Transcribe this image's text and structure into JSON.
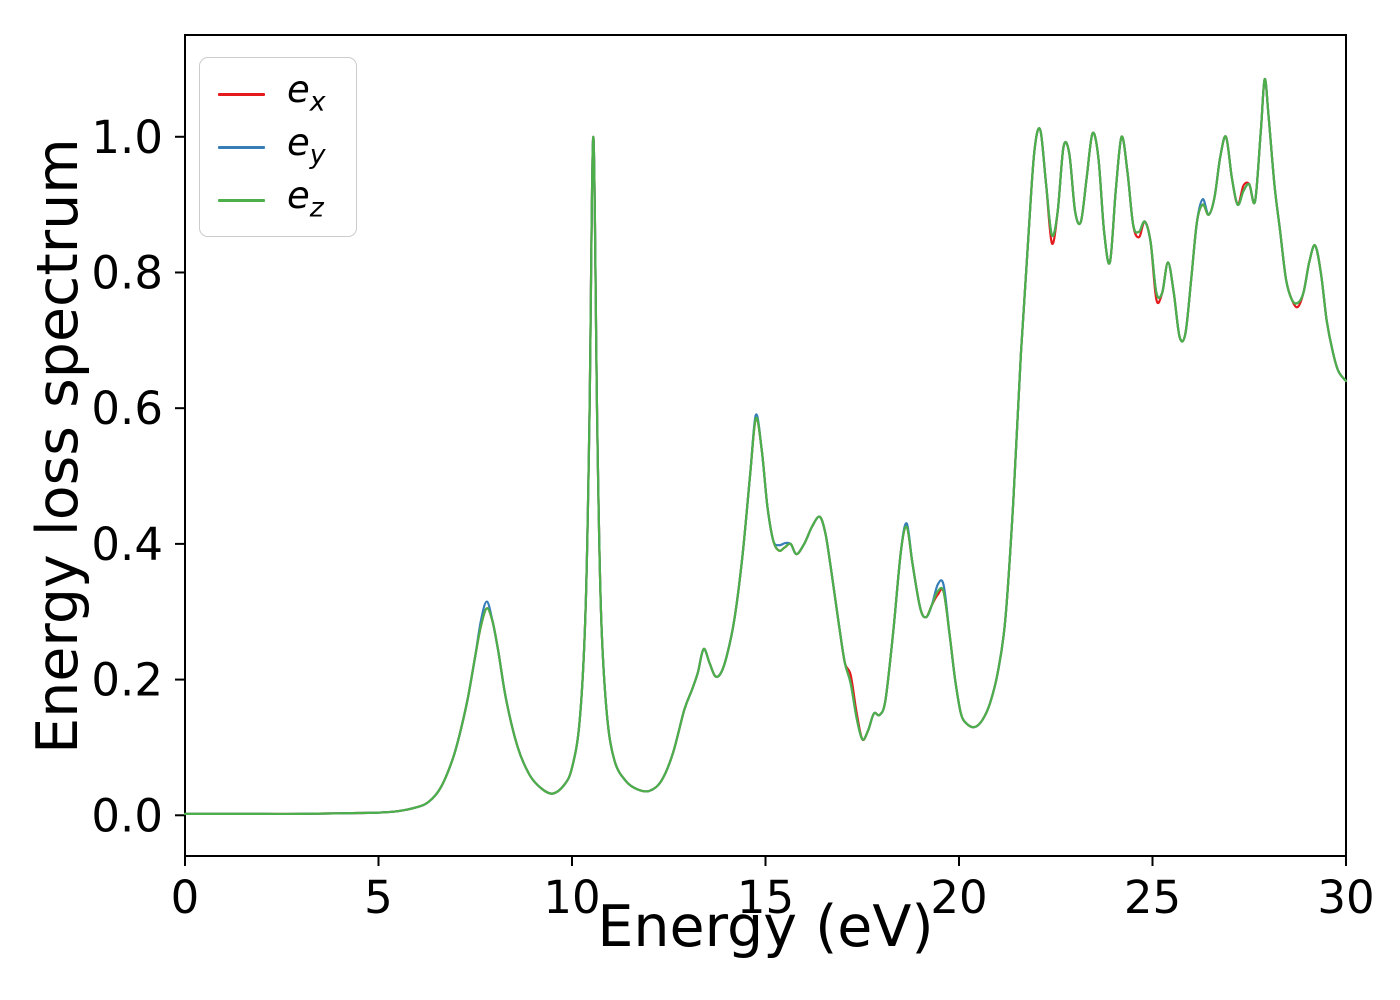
{
  "figure": {
    "background": "#ffffff",
    "spine_color": "#000000",
    "xlabel": "Energy (eV)",
    "ylabel": "Energy loss spectrum",
    "xticks": {
      "values": [
        0,
        5,
        10,
        15,
        20,
        25,
        30
      ],
      "labels": [
        "0",
        "5",
        "10",
        "15",
        "20",
        "25",
        "30"
      ]
    },
    "yticks": {
      "values": [
        0,
        0.2,
        0.4,
        0.6,
        0.8,
        1.0
      ],
      "labels": [
        "0.0",
        "0.2",
        "0.4",
        "0.6",
        "0.8",
        "1.0"
      ]
    }
  },
  "chart_data": {
    "type": "line",
    "title": "",
    "xlabel": "Energy (eV)",
    "ylabel": "Energy loss spectrum",
    "xlim": [
      0,
      30
    ],
    "ylim": [
      -0.06,
      1.15
    ],
    "grid": false,
    "legend_position": "upper left",
    "x": [
      0,
      1,
      2,
      3,
      4,
      5,
      5.5,
      6,
      6.3,
      6.6,
      6.9,
      7.1,
      7.3,
      7.5,
      7.65,
      7.8,
      7.95,
      8.1,
      8.3,
      8.6,
      8.9,
      9.2,
      9.5,
      9.8,
      10.0,
      10.2,
      10.35,
      10.45,
      10.55,
      10.65,
      10.75,
      10.9,
      11.1,
      11.4,
      11.7,
      12.0,
      12.3,
      12.6,
      12.9,
      13.1,
      13.25,
      13.4,
      13.55,
      13.7,
      13.85,
      14.0,
      14.2,
      14.4,
      14.6,
      14.75,
      14.9,
      15.05,
      15.2,
      15.35,
      15.5,
      15.65,
      15.8,
      16.0,
      16.2,
      16.4,
      16.55,
      16.7,
      16.9,
      17.05,
      17.2,
      17.35,
      17.5,
      17.65,
      17.8,
      17.95,
      18.1,
      18.3,
      18.5,
      18.65,
      18.8,
      19.0,
      19.15,
      19.3,
      19.45,
      19.6,
      19.75,
      19.9,
      20.05,
      20.2,
      20.4,
      20.6,
      20.8,
      21.0,
      21.2,
      21.4,
      21.6,
      21.8,
      21.95,
      22.1,
      22.25,
      22.4,
      22.55,
      22.7,
      22.85,
      23.0,
      23.15,
      23.3,
      23.45,
      23.6,
      23.75,
      23.9,
      24.05,
      24.2,
      24.35,
      24.5,
      24.65,
      24.8,
      24.95,
      25.1,
      25.25,
      25.4,
      25.55,
      25.7,
      25.85,
      26.0,
      26.15,
      26.3,
      26.45,
      26.6,
      26.75,
      26.9,
      27.05,
      27.2,
      27.35,
      27.5,
      27.65,
      27.8,
      27.9,
      28.0,
      28.15,
      28.3,
      28.45,
      28.6,
      28.75,
      28.9,
      29.05,
      29.2,
      29.35,
      29.5,
      29.65,
      29.8,
      30.0
    ],
    "series": [
      {
        "name": "e_x",
        "label_base": "e",
        "label_sub": "x",
        "color": "#e41a1c",
        "values": [
          0.002,
          0.002,
          0.002,
          0.002,
          0.003,
          0.004,
          0.006,
          0.012,
          0.02,
          0.04,
          0.08,
          0.12,
          0.17,
          0.235,
          0.28,
          0.305,
          0.285,
          0.24,
          0.17,
          0.1,
          0.06,
          0.04,
          0.032,
          0.045,
          0.07,
          0.14,
          0.3,
          0.58,
          1.0,
          0.58,
          0.3,
          0.15,
          0.08,
          0.05,
          0.038,
          0.036,
          0.05,
          0.09,
          0.155,
          0.185,
          0.21,
          0.245,
          0.225,
          0.205,
          0.21,
          0.235,
          0.29,
          0.38,
          0.5,
          0.585,
          0.54,
          0.455,
          0.405,
          0.39,
          0.395,
          0.4,
          0.385,
          0.4,
          0.425,
          0.44,
          0.415,
          0.36,
          0.28,
          0.225,
          0.207,
          0.153,
          0.112,
          0.125,
          0.15,
          0.148,
          0.17,
          0.27,
          0.39,
          0.425,
          0.37,
          0.305,
          0.292,
          0.31,
          0.325,
          0.33,
          0.27,
          0.2,
          0.15,
          0.135,
          0.13,
          0.14,
          0.165,
          0.21,
          0.29,
          0.46,
          0.68,
          0.86,
          0.98,
          1.01,
          0.93,
          0.843,
          0.89,
          0.985,
          0.975,
          0.89,
          0.875,
          0.94,
          1.005,
          0.97,
          0.86,
          0.815,
          0.92,
          1.0,
          0.95,
          0.87,
          0.852,
          0.875,
          0.845,
          0.76,
          0.77,
          0.815,
          0.77,
          0.705,
          0.71,
          0.79,
          0.875,
          0.9,
          0.885,
          0.91,
          0.97,
          1.0,
          0.94,
          0.9,
          0.928,
          0.93,
          0.905,
          1.01,
          1.085,
          1.03,
          0.93,
          0.86,
          0.79,
          0.76,
          0.749,
          0.77,
          0.815,
          0.84,
          0.8,
          0.73,
          0.685,
          0.655,
          0.64
        ]
      },
      {
        "name": "e_y",
        "label_base": "e",
        "label_sub": "y",
        "color": "#377eb8",
        "values": [
          0.002,
          0.002,
          0.002,
          0.002,
          0.003,
          0.004,
          0.006,
          0.012,
          0.02,
          0.04,
          0.08,
          0.12,
          0.17,
          0.235,
          0.288,
          0.315,
          0.285,
          0.24,
          0.17,
          0.1,
          0.06,
          0.04,
          0.032,
          0.045,
          0.07,
          0.14,
          0.3,
          0.58,
          1.0,
          0.58,
          0.3,
          0.15,
          0.08,
          0.05,
          0.038,
          0.036,
          0.05,
          0.09,
          0.155,
          0.185,
          0.21,
          0.245,
          0.225,
          0.205,
          0.21,
          0.235,
          0.29,
          0.38,
          0.5,
          0.59,
          0.54,
          0.455,
          0.405,
          0.398,
          0.401,
          0.4,
          0.385,
          0.4,
          0.425,
          0.44,
          0.415,
          0.36,
          0.28,
          0.225,
          0.195,
          0.145,
          0.112,
          0.125,
          0.15,
          0.148,
          0.17,
          0.27,
          0.39,
          0.43,
          0.37,
          0.305,
          0.292,
          0.31,
          0.34,
          0.34,
          0.27,
          0.2,
          0.15,
          0.135,
          0.13,
          0.14,
          0.165,
          0.21,
          0.29,
          0.46,
          0.68,
          0.86,
          0.98,
          1.01,
          0.93,
          0.855,
          0.89,
          0.985,
          0.975,
          0.89,
          0.875,
          0.94,
          1.005,
          0.97,
          0.86,
          0.815,
          0.92,
          1.0,
          0.95,
          0.87,
          0.86,
          0.875,
          0.845,
          0.77,
          0.77,
          0.815,
          0.77,
          0.705,
          0.71,
          0.79,
          0.875,
          0.908,
          0.885,
          0.91,
          0.97,
          1.0,
          0.94,
          0.9,
          0.92,
          0.93,
          0.905,
          1.01,
          1.085,
          1.03,
          0.93,
          0.86,
          0.79,
          0.76,
          0.755,
          0.77,
          0.815,
          0.84,
          0.8,
          0.73,
          0.685,
          0.655,
          0.64
        ]
      },
      {
        "name": "e_z",
        "label_base": "e",
        "label_sub": "z",
        "color": "#4daf4a",
        "values": [
          0.002,
          0.002,
          0.002,
          0.002,
          0.003,
          0.004,
          0.006,
          0.012,
          0.02,
          0.04,
          0.08,
          0.12,
          0.17,
          0.235,
          0.28,
          0.305,
          0.285,
          0.24,
          0.17,
          0.1,
          0.06,
          0.04,
          0.032,
          0.045,
          0.07,
          0.14,
          0.3,
          0.58,
          1.0,
          0.58,
          0.3,
          0.15,
          0.08,
          0.05,
          0.038,
          0.036,
          0.05,
          0.09,
          0.155,
          0.185,
          0.21,
          0.245,
          0.225,
          0.205,
          0.21,
          0.235,
          0.29,
          0.38,
          0.5,
          0.585,
          0.54,
          0.455,
          0.405,
          0.39,
          0.395,
          0.4,
          0.385,
          0.4,
          0.425,
          0.44,
          0.415,
          0.36,
          0.28,
          0.225,
          0.195,
          0.145,
          0.112,
          0.125,
          0.15,
          0.148,
          0.17,
          0.27,
          0.39,
          0.425,
          0.37,
          0.305,
          0.292,
          0.31,
          0.33,
          0.33,
          0.27,
          0.2,
          0.15,
          0.135,
          0.13,
          0.14,
          0.165,
          0.21,
          0.29,
          0.46,
          0.68,
          0.86,
          0.98,
          1.01,
          0.93,
          0.855,
          0.89,
          0.985,
          0.975,
          0.89,
          0.875,
          0.94,
          1.005,
          0.97,
          0.86,
          0.815,
          0.92,
          1.0,
          0.95,
          0.87,
          0.86,
          0.875,
          0.845,
          0.77,
          0.77,
          0.815,
          0.77,
          0.705,
          0.71,
          0.79,
          0.875,
          0.9,
          0.885,
          0.91,
          0.97,
          1.0,
          0.94,
          0.9,
          0.92,
          0.93,
          0.905,
          1.01,
          1.085,
          1.03,
          0.93,
          0.86,
          0.79,
          0.76,
          0.755,
          0.77,
          0.815,
          0.84,
          0.8,
          0.73,
          0.685,
          0.655,
          0.64
        ]
      }
    ]
  }
}
